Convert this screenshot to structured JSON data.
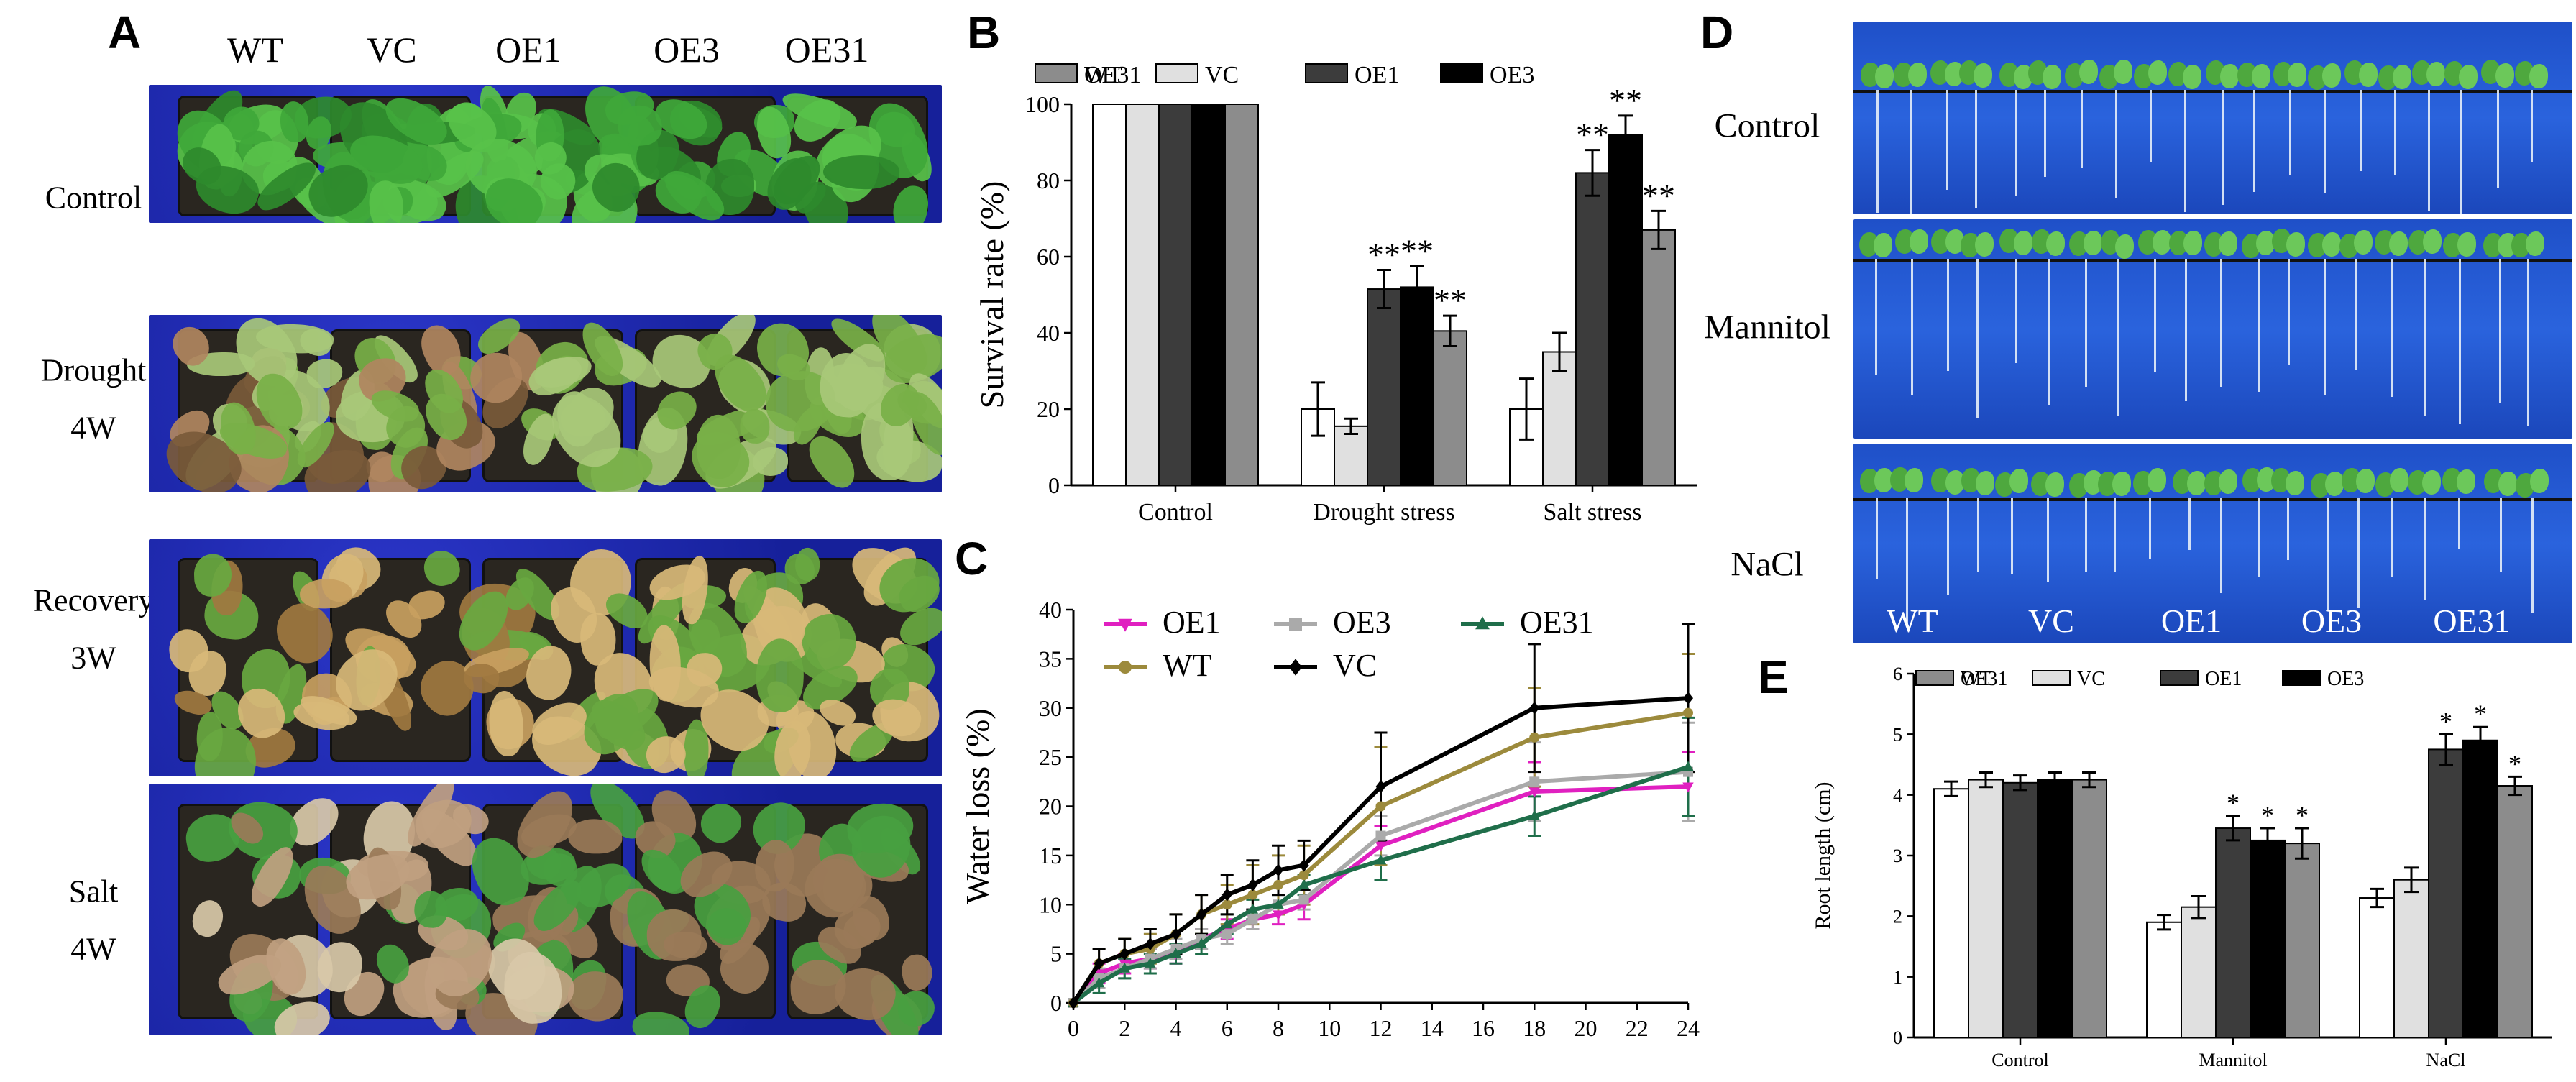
{
  "panels": {
    "a": {
      "letter": "A",
      "columns": [
        "WT",
        "VC",
        "OE1",
        "OE3",
        "OE31"
      ],
      "rows": [
        {
          "line1": "Control",
          "line2": ""
        },
        {
          "line1": "Drought",
          "line2": "4W"
        },
        {
          "line1": "Recovery",
          "line2": "3W"
        },
        {
          "line1": "Salt",
          "line2": "4W"
        }
      ]
    },
    "b": {
      "letter": "B"
    },
    "c": {
      "letter": "C"
    },
    "d": {
      "letter": "D",
      "rows": [
        "Control",
        "Mannitol",
        "NaCl"
      ],
      "columns": [
        "WT",
        "VC",
        "OE1",
        "OE3",
        "OE31"
      ]
    },
    "e": {
      "letter": "E"
    }
  },
  "colors": {
    "WT_bar": "#ffffff",
    "VC_bar": "#e0e0e0",
    "OE1_bar": "#3c3c3c",
    "OE3_bar": "#000000",
    "OE31_bar": "#8c8c8c",
    "OE1_line": "#e020c0",
    "OE3_line": "#aaaaaa",
    "OE31_line": "#1f6e4a",
    "WT_line": "#9c8a3c",
    "VC_line": "#000000"
  },
  "chart_data": [
    {
      "id": "B",
      "type": "bar",
      "title": "",
      "xlabel": "",
      "ylabel": "Survival rate (%)",
      "ylim": [
        0,
        100
      ],
      "yticks": [
        0,
        20,
        40,
        60,
        80,
        100
      ],
      "categories": [
        "Control",
        "Drought stress",
        "Salt stress"
      ],
      "series": [
        {
          "name": "WT",
          "values": [
            100,
            20,
            20
          ],
          "errors": [
            0,
            7,
            8
          ],
          "sig": [
            "",
            "",
            ""
          ]
        },
        {
          "name": "VC",
          "values": [
            100,
            15.5,
            35
          ],
          "errors": [
            0,
            2,
            5
          ],
          "sig": [
            "",
            "",
            ""
          ]
        },
        {
          "name": "OE1",
          "values": [
            100,
            51.5,
            82
          ],
          "errors": [
            0,
            5,
            6
          ],
          "sig": [
            "",
            "**",
            "**"
          ]
        },
        {
          "name": "OE3",
          "values": [
            100,
            52,
            92
          ],
          "errors": [
            0,
            5.5,
            5
          ],
          "sig": [
            "",
            "**",
            "**"
          ]
        },
        {
          "name": "OE31",
          "values": [
            100,
            40.5,
            67
          ],
          "errors": [
            0,
            4,
            5
          ],
          "sig": [
            "",
            "**",
            "**"
          ]
        }
      ],
      "legend": "top"
    },
    {
      "id": "C",
      "type": "line",
      "title": "",
      "xlabel": "",
      "ylabel": "Water loss (%)",
      "ylim": [
        0,
        40
      ],
      "yticks": [
        0,
        5,
        10,
        15,
        20,
        25,
        30,
        35,
        40
      ],
      "xlim": [
        0,
        24
      ],
      "xticks": [
        0,
        2,
        4,
        6,
        8,
        10,
        12,
        14,
        16,
        18,
        20,
        22,
        24
      ],
      "x": [
        0,
        1,
        2,
        3,
        4,
        5,
        6,
        7,
        8,
        9,
        12,
        18,
        24
      ],
      "series": [
        {
          "name": "OE1",
          "values": [
            0,
            3,
            4,
            4.5,
            5,
            6.5,
            7.5,
            8.5,
            9,
            10,
            16,
            21.5,
            22
          ],
          "errors": [
            0,
            1,
            1,
            1,
            1,
            1,
            1,
            1,
            1,
            1.5,
            2,
            3,
            3.5
          ],
          "marker": "triangle-down"
        },
        {
          "name": "OE3",
          "values": [
            0,
            2.5,
            3.5,
            4.5,
            5.5,
            6.5,
            7,
            8.5,
            10,
            10.5,
            17,
            22.5,
            23.5
          ],
          "errors": [
            0,
            1,
            1,
            1,
            1,
            1,
            1,
            1,
            1,
            1,
            2,
            4,
            5
          ],
          "marker": "square"
        },
        {
          "name": "OE31",
          "values": [
            0,
            2,
            3.5,
            4,
            5,
            6,
            8,
            9.5,
            10,
            12,
            14.5,
            19,
            24
          ],
          "errors": [
            0,
            1,
            1,
            1,
            1,
            1,
            1,
            1,
            1,
            1,
            2,
            2,
            5
          ],
          "marker": "triangle-up"
        },
        {
          "name": "WT",
          "values": [
            0,
            4,
            5,
            5.5,
            7,
            9,
            10,
            11,
            12,
            13,
            20,
            27,
            29.5
          ],
          "errors": [
            0,
            1.5,
            1.5,
            1.5,
            2,
            2,
            2,
            3,
            3,
            3,
            6,
            5,
            6
          ],
          "marker": "circle"
        },
        {
          "name": "VC",
          "values": [
            0,
            4,
            5,
            6,
            7,
            9,
            11,
            12,
            13.5,
            14,
            22,
            30,
            31
          ],
          "errors": [
            0,
            1.5,
            1.5,
            1.5,
            2,
            2,
            2,
            2.5,
            2.5,
            2.5,
            5.5,
            6.5,
            7.5
          ],
          "marker": "diamond"
        }
      ],
      "legend": "top"
    },
    {
      "id": "E",
      "type": "bar",
      "title": "",
      "xlabel": "",
      "ylabel": "Root length (cm)",
      "ylim": [
        0,
        6
      ],
      "yticks": [
        0,
        1,
        2,
        3,
        4,
        5,
        6
      ],
      "categories": [
        "Control",
        "Mannitol",
        "NaCl"
      ],
      "series": [
        {
          "name": "WT",
          "values": [
            4.1,
            1.9,
            2.3
          ],
          "errors": [
            0.12,
            0.12,
            0.15
          ],
          "sig": [
            "",
            "",
            ""
          ]
        },
        {
          "name": "VC",
          "values": [
            4.25,
            2.15,
            2.6
          ],
          "errors": [
            0.12,
            0.18,
            0.2
          ],
          "sig": [
            "",
            "",
            ""
          ]
        },
        {
          "name": "OE1",
          "values": [
            4.2,
            3.45,
            4.75
          ],
          "errors": [
            0.12,
            0.2,
            0.25
          ],
          "sig": [
            "",
            "*",
            "*"
          ]
        },
        {
          "name": "OE3",
          "values": [
            4.25,
            3.25,
            4.9
          ],
          "errors": [
            0.12,
            0.2,
            0.22
          ],
          "sig": [
            "",
            "*",
            "*"
          ]
        },
        {
          "name": "OE31",
          "values": [
            4.25,
            3.2,
            4.15
          ],
          "errors": [
            0.12,
            0.25,
            0.15
          ],
          "sig": [
            "",
            "*",
            "*"
          ]
        }
      ],
      "legend": "top"
    }
  ]
}
